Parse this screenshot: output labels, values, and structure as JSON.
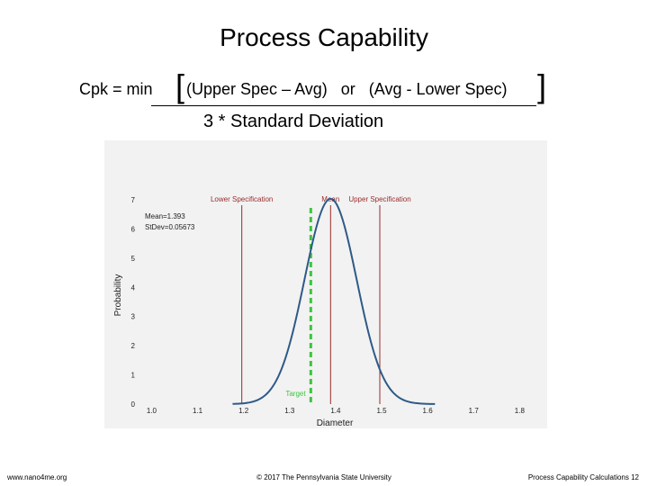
{
  "slide": {
    "title": "Process Capability",
    "formula": {
      "lhs": "Cpk  =  min",
      "left_bracket": "[",
      "numerator": "(Upper Spec – Avg)   or   (Avg - Lower Spec)",
      "right_bracket": "]",
      "denominator": "3 * Standard Deviation"
    },
    "footer": {
      "left": "www.nano4me.org",
      "center": "© 2017 The Pennsylvania State University",
      "right": "Process Capability Calculations 12"
    }
  },
  "chart_data": {
    "type": "line",
    "xlabel": "Diameter",
    "ylabel": "Probability",
    "xlim": [
      0.96,
      1.86
    ],
    "ylim": [
      0,
      7
    ],
    "x_ticks": [
      "1.0",
      "1.1",
      "1.2",
      "1.3",
      "1.4",
      "1.5",
      "1.6",
      "1.7",
      "1.8"
    ],
    "x_tick_values": [
      1.0,
      1.1,
      1.2,
      1.3,
      1.4,
      1.5,
      1.6,
      1.7,
      1.8
    ],
    "y_ticks": [
      "0",
      "1",
      "2",
      "3",
      "4",
      "5",
      "6",
      "7"
    ],
    "y_tick_values": [
      0,
      1,
      2,
      3,
      4,
      5,
      6,
      7
    ],
    "stats_text": [
      "Mean=1.393",
      "StDev=0.05673"
    ],
    "mean": 1.393,
    "stdev": 0.05673,
    "reference_lines": [
      {
        "label": "Lower Specification",
        "x": 1.2,
        "color": "#9b2b2b"
      },
      {
        "label": "Mean",
        "x": 1.393,
        "color": "#9b2b2b"
      },
      {
        "label": "Upper Specification",
        "x": 1.5,
        "color": "#9b2b2b"
      }
    ],
    "target": {
      "label": "Target",
      "x": 1.35,
      "color": "#3ec43e"
    },
    "curve_color": "#2e5a88",
    "panel_color": "#f2f2f2"
  }
}
